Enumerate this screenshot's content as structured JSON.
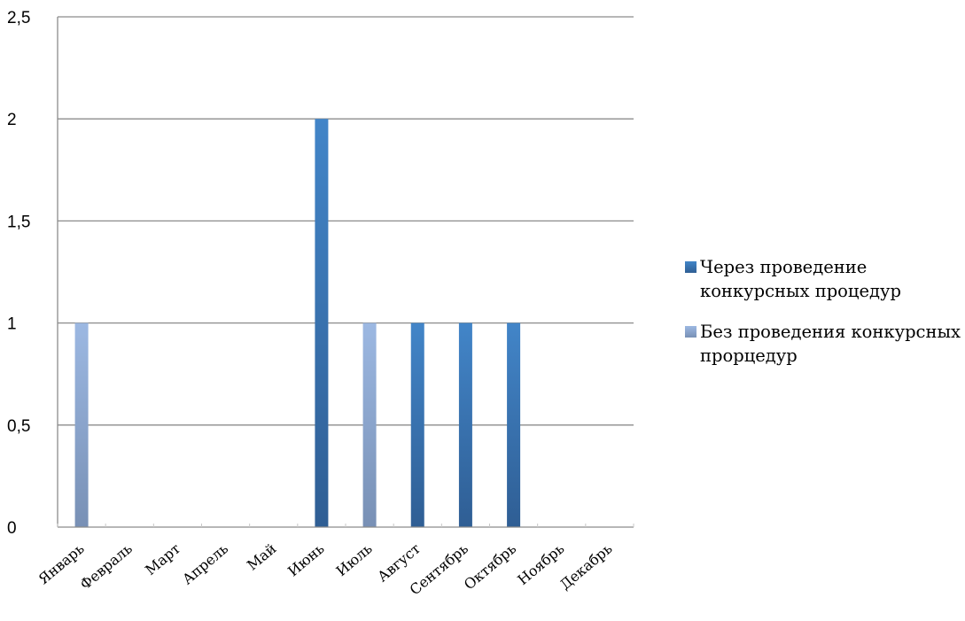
{
  "chart_data": {
    "type": "bar",
    "categories": [
      "Январь",
      "Февраль",
      "Март",
      "Апрель",
      "Май",
      "Июнь",
      "Июль",
      "Август",
      "Сентябрь",
      "Октябрь",
      "Ноябрь",
      "Декабрь"
    ],
    "series": [
      {
        "name": "Через проведение конкурсных процедур",
        "values": [
          0,
          0,
          0,
          0,
          0,
          2,
          0,
          1,
          1,
          1,
          0,
          0
        ],
        "color": "#3A73B2"
      },
      {
        "name": "Без проведения конкурсных прорцедур",
        "values": [
          1,
          0,
          0,
          0,
          0,
          0,
          1,
          0,
          0,
          0,
          0,
          0
        ],
        "color": "#8FAAD4"
      }
    ],
    "ylim": [
      0,
      2.5
    ],
    "yticks": [
      "0",
      "0,5",
      "1",
      "1,5",
      "2",
      "2,5"
    ],
    "grid": true,
    "legend_position": "right"
  }
}
